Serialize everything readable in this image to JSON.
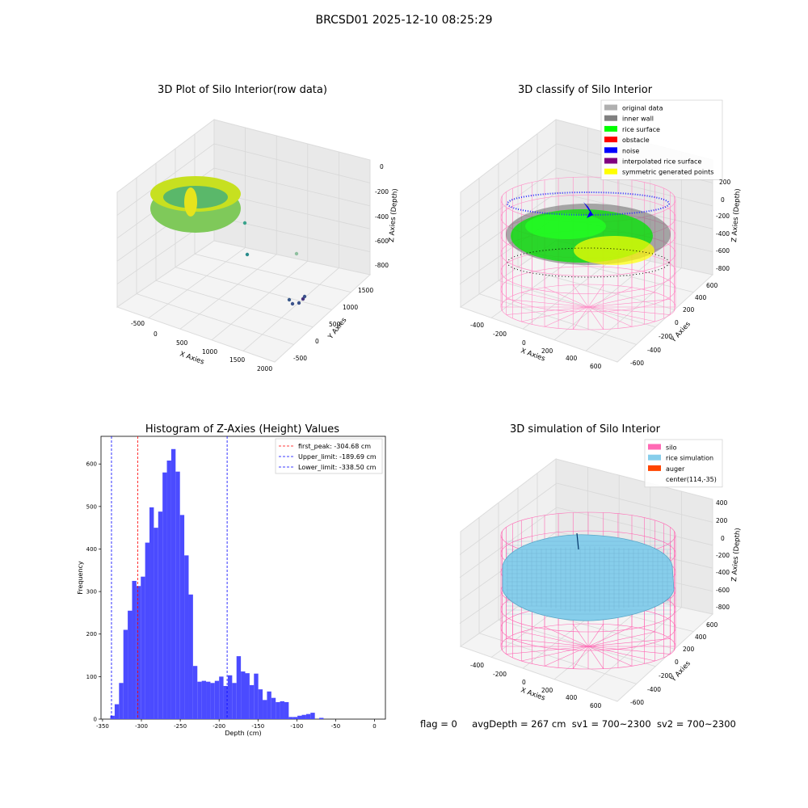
{
  "suptitle": "BRCSD01 2025-12-10 08:25:29",
  "raw_plot": {
    "title": "3D Plot of Silo Interior(row data)",
    "x_label": "X Axies",
    "y_label": "Y Axies",
    "z_label": "Z Axies (Depth)",
    "x_ticks": [
      "-500",
      "0",
      "500",
      "1000",
      "1500",
      "2000"
    ],
    "y_ticks": [
      "-500",
      "0",
      "500",
      "1000",
      "1500"
    ],
    "z_ticks": [
      "0",
      "-200",
      "-400",
      "-600",
      "-800"
    ]
  },
  "classify_plot": {
    "title": "3D classify of Silo Interior",
    "x_label": "X Axies",
    "y_label": "Y Axies",
    "z_label": "Z Axies (Depth)",
    "x_ticks": [
      "-400",
      "-200",
      "0",
      "200",
      "400",
      "600"
    ],
    "y_ticks": [
      "-600",
      "-400",
      "-200",
      "0",
      "200",
      "400",
      "600"
    ],
    "z_ticks": [
      "200",
      "0",
      "-200",
      "-400",
      "-600",
      "-800"
    ],
    "legend": [
      {
        "label": "original data",
        "color": "#b0b0b0"
      },
      {
        "label": "inner wall",
        "color": "#808080"
      },
      {
        "label": "rice surface",
        "color": "#00ff00"
      },
      {
        "label": "obstacle",
        "color": "#ff0000"
      },
      {
        "label": "noise",
        "color": "#0000ff"
      },
      {
        "label": "interpolated rice surface",
        "color": "#800080"
      },
      {
        "label": "symmetric generated points",
        "color": "#ffff00"
      }
    ]
  },
  "simulation_plot": {
    "title": "3D simulation of Silo Interior",
    "x_label": "X Axies",
    "y_label": "Y Axies",
    "z_label": "Z Axies (Depth)",
    "x_ticks": [
      "-400",
      "-200",
      "0",
      "200",
      "400",
      "600"
    ],
    "y_ticks": [
      "-600",
      "-400",
      "-200",
      "0",
      "200",
      "400",
      "600"
    ],
    "z_ticks": [
      "400",
      "200",
      "0",
      "-200",
      "-400",
      "-600",
      "-800"
    ],
    "legend": [
      {
        "label": "silo",
        "color": "#ff69b4"
      },
      {
        "label": "rice simulation",
        "color": "#87ceeb"
      },
      {
        "label": "auger",
        "color": "#ff4500"
      },
      {
        "label": "center(114,-35)",
        "color": ""
      }
    ]
  },
  "chart_data": {
    "type": "bar",
    "title": "Histogram of Z-Axies (Height) Values",
    "xlabel": "Depth (cm)",
    "ylabel": "Frequency",
    "xlim": [
      -352,
      14
    ],
    "ylim": [
      0,
      665
    ],
    "x_ticks": [
      -350,
      -300,
      -250,
      -200,
      -150,
      -100,
      -50,
      0
    ],
    "y_ticks": [
      0,
      100,
      200,
      300,
      400,
      500,
      600
    ],
    "bin_start": -340,
    "bin_width": 5.6,
    "bar_color": "#4b4bff",
    "values": [
      8,
      35,
      85,
      210,
      255,
      325,
      313,
      335,
      415,
      498,
      450,
      488,
      580,
      608,
      635,
      582,
      480,
      385,
      293,
      125,
      88,
      90,
      88,
      85,
      90,
      100,
      78,
      103,
      85,
      148,
      112,
      108,
      80,
      107,
      70,
      45,
      65,
      50,
      40,
      42,
      40,
      5,
      5,
      8,
      10,
      12,
      15,
      0,
      3
    ],
    "lines": [
      {
        "label": "first_peak: -304.68 cm",
        "x": -304.68,
        "color": "#ff0000"
      },
      {
        "label": "Upper_limit: -189.69 cm",
        "x": -189.69,
        "color": "#0000ff"
      },
      {
        "label": "Lower_limit: -338.50 cm",
        "x": -338.5,
        "color": "#0000ff"
      }
    ]
  },
  "footer": {
    "flag": "flag = 0",
    "avg_depth": "avgDepth = 267 cm",
    "sv1": "sv1 = 700~2300",
    "sv2": "sv2 = 700~2300"
  }
}
